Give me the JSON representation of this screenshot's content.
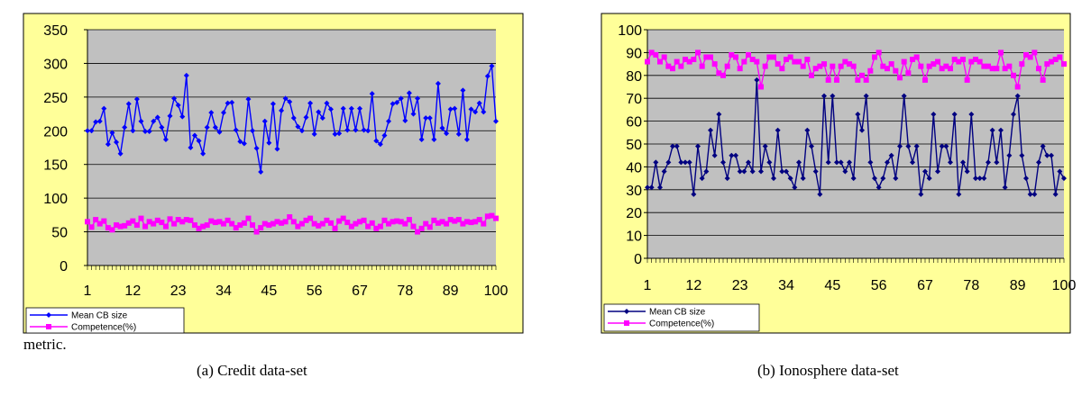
{
  "body_fragment": "metric.",
  "chart_data": [
    {
      "type": "line",
      "caption": "(a) Credit data-set",
      "ylim": [
        0,
        350
      ],
      "y_ticks": [
        0,
        50,
        100,
        150,
        200,
        250,
        300,
        350
      ],
      "x_ticks": [
        1,
        12,
        23,
        34,
        45,
        56,
        67,
        78,
        89,
        100
      ],
      "x_range": [
        1,
        100
      ],
      "grid": true,
      "legend_position": "bottom-left",
      "colors": {
        "mean": "#0000FF",
        "competence": "#FF00FF",
        "plot_bg": "#C0C0C0",
        "frame_bg": "#FFFF99"
      },
      "series": [
        {
          "name": "Mean CB size",
          "values": [
            200,
            200,
            213,
            214,
            233,
            180,
            197,
            183,
            166,
            205,
            240,
            200,
            247,
            214,
            199,
            199,
            214,
            220,
            205,
            187,
            222,
            248,
            238,
            221,
            282,
            175,
            193,
            185,
            166,
            205,
            227,
            205,
            198,
            227,
            241,
            242,
            201,
            184,
            181,
            247,
            200,
            174,
            139,
            214,
            182,
            240,
            173,
            230,
            248,
            243,
            219,
            206,
            200,
            220,
            241,
            195,
            228,
            219,
            241,
            232,
            195,
            196,
            233,
            201,
            233,
            201,
            233,
            201,
            200,
            255,
            185,
            180,
            193,
            214,
            240,
            242,
            248,
            215,
            256,
            225,
            248,
            187,
            219,
            219,
            187,
            270,
            204,
            196,
            232,
            233,
            195,
            260,
            187,
            232,
            228,
            241,
            228,
            281,
            296,
            214
          ]
        },
        {
          "name": "Competence(%)",
          "values": [
            65,
            57,
            68,
            62,
            66,
            56,
            53,
            60,
            58,
            59,
            63,
            66,
            60,
            70,
            58,
            65,
            62,
            67,
            64,
            58,
            69,
            62,
            68,
            65,
            68,
            67,
            60,
            55,
            58,
            60,
            66,
            64,
            65,
            62,
            67,
            62,
            56,
            60,
            63,
            70,
            60,
            50,
            56,
            62,
            60,
            62,
            65,
            63,
            65,
            72,
            65,
            58,
            62,
            67,
            70,
            62,
            59,
            62,
            67,
            63,
            55,
            66,
            70,
            64,
            58,
            62,
            65,
            67,
            58,
            63,
            55,
            58,
            67,
            62,
            65,
            66,
            65,
            62,
            68,
            58,
            50,
            55,
            62,
            57,
            67,
            63,
            65,
            62,
            68,
            66,
            68,
            62,
            65,
            64,
            65,
            68,
            62,
            73,
            74,
            70
          ]
        }
      ]
    },
    {
      "type": "line",
      "caption": "(b) Ionosphere data-set",
      "ylim": [
        0,
        100
      ],
      "y_ticks": [
        0,
        10,
        20,
        30,
        40,
        50,
        60,
        70,
        80,
        90,
        100
      ],
      "x_ticks": [
        1,
        12,
        23,
        34,
        45,
        56,
        67,
        78,
        89,
        100
      ],
      "x_range": [
        1,
        100
      ],
      "grid": true,
      "legend_position": "bottom-left",
      "colors": {
        "mean": "#000080",
        "competence": "#FF00FF",
        "plot_bg": "#C0C0C0",
        "frame_bg": "#FFFF99"
      },
      "series": [
        {
          "name": "Mean CB size",
          "values": [
            31,
            31,
            42,
            31,
            38,
            42,
            49,
            49,
            42,
            42,
            42,
            28,
            49,
            35,
            38,
            56,
            45,
            63,
            42,
            35,
            45,
            45,
            38,
            38,
            42,
            38,
            78,
            38,
            49,
            42,
            35,
            56,
            38,
            38,
            35,
            31,
            42,
            35,
            56,
            49,
            38,
            28,
            71,
            42,
            71,
            42,
            42,
            38,
            42,
            35,
            63,
            56,
            71,
            42,
            35,
            31,
            35,
            42,
            45,
            35,
            49,
            71,
            49,
            42,
            49,
            28,
            38,
            35,
            63,
            38,
            49,
            49,
            42,
            63,
            28,
            42,
            38,
            63,
            35,
            35,
            35,
            42,
            56,
            42,
            56,
            31,
            45,
            63,
            71,
            45,
            35,
            28,
            28,
            42,
            49,
            45,
            45,
            28,
            38,
            35
          ]
        },
        {
          "name": "Competence(%)",
          "values": [
            86,
            90,
            89,
            86,
            88,
            84,
            83,
            86,
            84,
            87,
            86,
            87,
            90,
            84,
            88,
            88,
            85,
            81,
            80,
            84,
            89,
            88,
            83,
            86,
            89,
            87,
            86,
            75,
            84,
            88,
            88,
            85,
            83,
            87,
            88,
            86,
            86,
            84,
            87,
            80,
            83,
            84,
            85,
            78,
            84,
            78,
            84,
            86,
            85,
            84,
            78,
            80,
            78,
            82,
            88,
            90,
            84,
            83,
            85,
            82,
            79,
            86,
            81,
            87,
            88,
            84,
            78,
            84,
            85,
            86,
            83,
            84,
            83,
            87,
            86,
            87,
            78,
            86,
            87,
            86,
            84,
            84,
            83,
            83,
            90,
            83,
            84,
            80,
            75,
            85,
            89,
            88,
            90,
            83,
            78,
            85,
            86,
            87,
            88,
            85
          ]
        }
      ]
    }
  ]
}
